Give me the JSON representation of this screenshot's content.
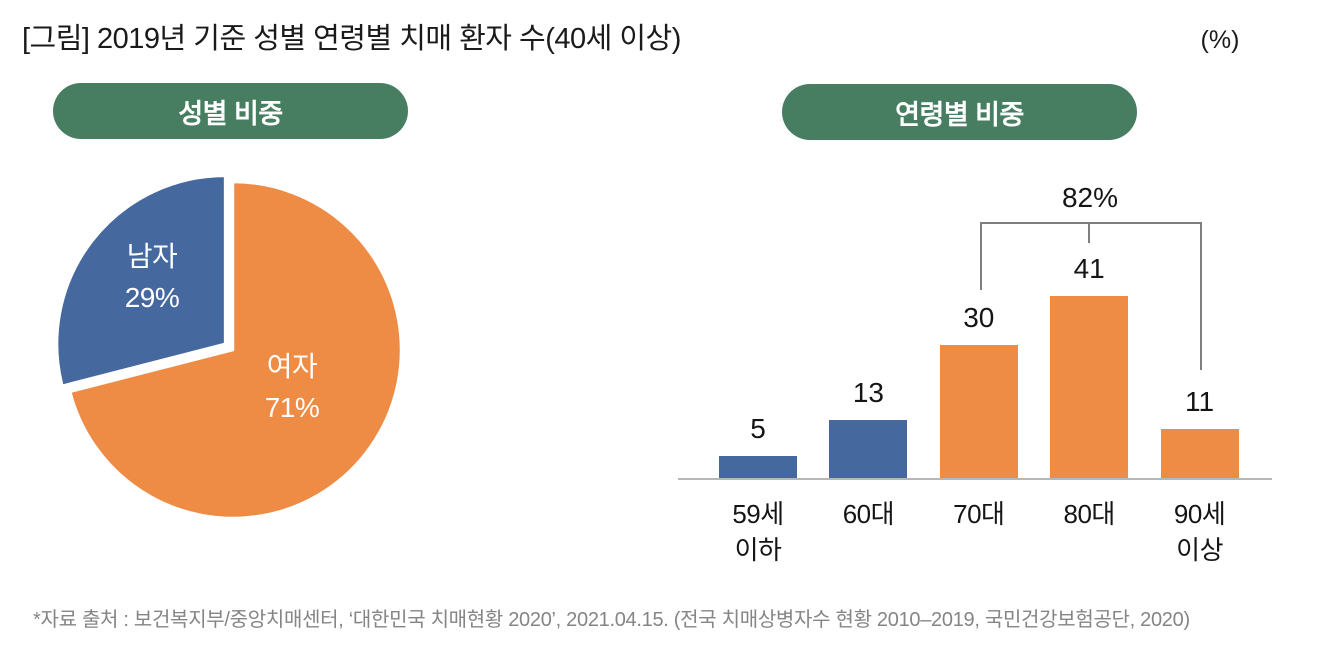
{
  "header": {
    "title": "[그림] 2019년 기준 성별 연령별 치매 환자 수(40세 이상)",
    "unit_label": "(%)"
  },
  "badges": {
    "gender": "성별 비중",
    "age": "연령별 비중"
  },
  "colors": {
    "male_blue": "#45689F",
    "female_orange": "#EE8B45",
    "badge_green": "#477E61",
    "bracket_line": "#7F7F7F",
    "axis_line": "#B7B7B7",
    "footer_gray": "#858585"
  },
  "chart_data": [
    {
      "type": "pie",
      "title": "성별 비중",
      "unit": "%",
      "start_angle_deg_from_top": 0,
      "direction": "clockwise",
      "slices": [
        {
          "label": "여자",
          "value": 71,
          "pct_label": "71%",
          "color": "#EE8B45",
          "explode": false
        },
        {
          "label": "남자",
          "value": 29,
          "pct_label": "29%",
          "color": "#45689F",
          "explode": true
        }
      ]
    },
    {
      "type": "bar",
      "title": "연령별 비중",
      "unit": "%",
      "categories": [
        "59세 이하",
        "60대",
        "70대",
        "80대",
        "90세 이상"
      ],
      "tick_labels": [
        "59세\n이하",
        "60대",
        "70대",
        "80대",
        "90세\n이상"
      ],
      "values": [
        5,
        13,
        30,
        41,
        11
      ],
      "bar_colors": [
        "#45689F",
        "#45689F",
        "#EE8B45",
        "#EE8B45",
        "#EE8B45"
      ],
      "ylim": [
        0,
        45
      ],
      "grid": false,
      "legend": false,
      "annotation": {
        "label": "82%",
        "span_categories": [
          "70대",
          "80대",
          "90세 이상"
        ]
      }
    }
  ],
  "footer": {
    "source": "*자료 출처 : 보건복지부/중앙치매센터, ‘대한민국 치매현황 2020’, 2021.04.15. (전국 치매상병자수 현황 2010–2019, 국민건강보험공단, 2020)"
  }
}
